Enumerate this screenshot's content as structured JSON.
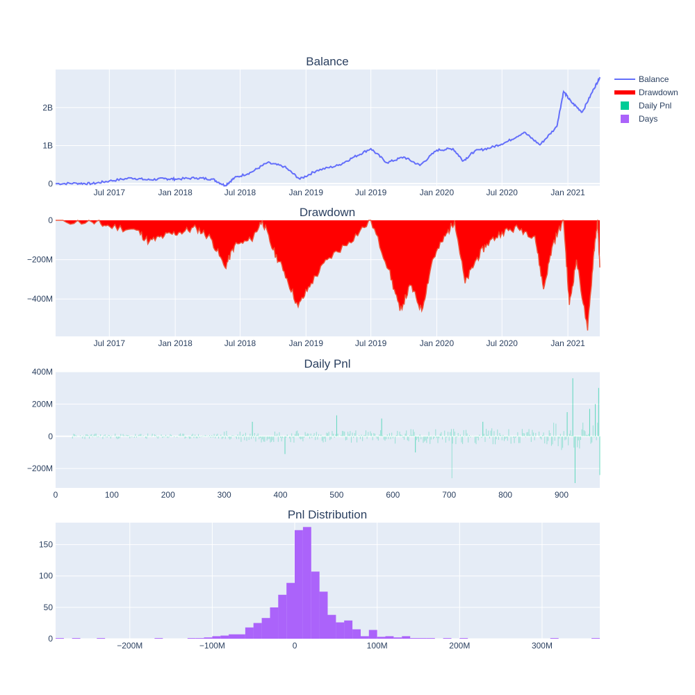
{
  "chart_data": [
    {
      "type": "line",
      "title": "Balance",
      "series_name": "Balance",
      "x_ticks": [
        "Jul 2017",
        "Jan 2018",
        "Jul 2018",
        "Jan 2019",
        "Jul 2019",
        "Jan 2020",
        "Jul 2020",
        "Jan 2021"
      ],
      "y_ticks": [
        "0",
        "1B",
        "2B"
      ],
      "y_tick_values": [
        0,
        1,
        2
      ],
      "y_unit": "billions",
      "ylim": [
        -0.05,
        3.0
      ],
      "x_start": "2017-02-01",
      "x_end": "2021-03-31",
      "x_tick_dates": [
        "2017-07-01",
        "2018-01-01",
        "2018-07-01",
        "2019-01-01",
        "2019-07-01",
        "2020-01-01",
        "2020-07-01",
        "2021-01-01"
      ],
      "points": [
        [
          "2017-02-01",
          0.0
        ],
        [
          "2017-04-01",
          0.01
        ],
        [
          "2017-05-15",
          0.0
        ],
        [
          "2017-07-01",
          0.07
        ],
        [
          "2017-09-01",
          0.15
        ],
        [
          "2017-10-15",
          0.1
        ],
        [
          "2017-12-01",
          0.13
        ],
        [
          "2018-01-01",
          0.12
        ],
        [
          "2018-03-01",
          0.15
        ],
        [
          "2018-04-15",
          0.12
        ],
        [
          "2018-05-20",
          -0.05
        ],
        [
          "2018-06-15",
          0.15
        ],
        [
          "2018-08-01",
          0.3
        ],
        [
          "2018-09-15",
          0.55
        ],
        [
          "2018-11-01",
          0.45
        ],
        [
          "2018-12-15",
          0.12
        ],
        [
          "2019-02-01",
          0.35
        ],
        [
          "2019-04-01",
          0.48
        ],
        [
          "2019-05-15",
          0.7
        ],
        [
          "2019-07-01",
          0.92
        ],
        [
          "2019-08-15",
          0.55
        ],
        [
          "2019-10-01",
          0.7
        ],
        [
          "2019-11-15",
          0.48
        ],
        [
          "2020-01-01",
          0.88
        ],
        [
          "2020-02-15",
          0.92
        ],
        [
          "2020-03-15",
          0.6
        ],
        [
          "2020-04-15",
          0.85
        ],
        [
          "2020-06-01",
          0.95
        ],
        [
          "2020-07-15",
          1.1
        ],
        [
          "2020-09-01",
          1.35
        ],
        [
          "2020-10-15",
          1.02
        ],
        [
          "2020-12-01",
          1.5
        ],
        [
          "2020-12-20",
          2.42
        ],
        [
          "2021-01-10",
          2.15
        ],
        [
          "2021-02-10",
          1.88
        ],
        [
          "2021-03-15",
          2.5
        ],
        [
          "2021-03-31",
          2.8
        ]
      ]
    },
    {
      "type": "area",
      "title": "Drawdown",
      "series_name": "Drawdown",
      "x_ticks": [
        "Jul 2017",
        "Jan 2018",
        "Jul 2018",
        "Jan 2019",
        "Jul 2019",
        "Jan 2020",
        "Jul 2020",
        "Jan 2021"
      ],
      "y_ticks": [
        "0",
        "−200M",
        "−400M"
      ],
      "y_tick_values": [
        0,
        -200,
        -400
      ],
      "y_unit": "millions",
      "ylim": [
        -590,
        0
      ],
      "points": [
        [
          "2017-02-01",
          0
        ],
        [
          "2017-05-15",
          -10
        ],
        [
          "2017-07-01",
          -30
        ],
        [
          "2017-09-15",
          -50
        ],
        [
          "2017-10-20",
          -110
        ],
        [
          "2017-12-01",
          -80
        ],
        [
          "2018-01-15",
          -60
        ],
        [
          "2018-03-01",
          -40
        ],
        [
          "2018-04-10",
          -90
        ],
        [
          "2018-05-20",
          -240
        ],
        [
          "2018-06-15",
          -130
        ],
        [
          "2018-08-01",
          -100
        ],
        [
          "2018-09-01",
          0
        ],
        [
          "2018-10-01",
          -150
        ],
        [
          "2018-11-01",
          -260
        ],
        [
          "2018-12-10",
          -440
        ],
        [
          "2019-01-15",
          -320
        ],
        [
          "2019-03-01",
          -200
        ],
        [
          "2019-05-01",
          -110
        ],
        [
          "2019-07-01",
          0
        ],
        [
          "2019-08-20",
          -250
        ],
        [
          "2019-09-20",
          -460
        ],
        [
          "2019-10-20",
          -330
        ],
        [
          "2019-11-20",
          -460
        ],
        [
          "2019-12-20",
          -200
        ],
        [
          "2020-01-25",
          -80
        ],
        [
          "2020-02-20",
          0
        ],
        [
          "2020-03-20",
          -320
        ],
        [
          "2020-04-20",
          -200
        ],
        [
          "2020-05-20",
          -120
        ],
        [
          "2020-07-01",
          -60
        ],
        [
          "2020-08-15",
          -40
        ],
        [
          "2020-10-01",
          -80
        ],
        [
          "2020-10-25",
          -350
        ],
        [
          "2020-11-20",
          -120
        ],
        [
          "2020-12-20",
          0
        ],
        [
          "2021-01-05",
          -430
        ],
        [
          "2021-01-25",
          -200
        ],
        [
          "2021-02-25",
          -560
        ],
        [
          "2021-03-15",
          -150
        ],
        [
          "2021-03-25",
          0
        ],
        [
          "2021-03-31",
          -240
        ]
      ]
    },
    {
      "type": "bar",
      "title": "Daily Pnl",
      "series_name": "Daily Pnl",
      "x_ticks": [
        "0",
        "100",
        "200",
        "300",
        "400",
        "500",
        "600",
        "700",
        "800",
        "900"
      ],
      "xlim": [
        0,
        968
      ],
      "y_ticks": [
        "400M",
        "200M",
        "0",
        "−200M"
      ],
      "y_tick_values": [
        400,
        200,
        0,
        -200
      ],
      "y_unit": "millions",
      "ylim": [
        -320,
        400
      ],
      "values_summary": "daily bars from day 30 to 968, small amplitude early, extremes near days 700 (-260M), 920 (+360M, -290M), 968 (+300M, -240M)",
      "spikes": [
        [
          350,
          90
        ],
        [
          408,
          -110
        ],
        [
          500,
          130
        ],
        [
          580,
          110
        ],
        [
          640,
          -100
        ],
        [
          705,
          -260
        ],
        [
          760,
          90
        ],
        [
          910,
          150
        ],
        [
          920,
          360
        ],
        [
          924,
          -290
        ],
        [
          950,
          170
        ],
        [
          960,
          200
        ],
        [
          966,
          300
        ],
        [
          968,
          -240
        ]
      ]
    },
    {
      "type": "bar",
      "title": "Pnl Distribution",
      "series_name": "Days",
      "x_ticks": [
        "−200M",
        "−100M",
        "0",
        "100M",
        "200M",
        "300M"
      ],
      "x_tick_values": [
        -200,
        -100,
        0,
        100,
        200,
        300
      ],
      "x_unit": "millions",
      "xlim": [
        -290,
        370
      ],
      "y_ticks": [
        "150",
        "100",
        "50",
        "0"
      ],
      "y_tick_values": [
        150,
        100,
        50,
        0
      ],
      "ylim": [
        0,
        185
      ],
      "bin_width": 10,
      "bins": [
        [
          -130,
          1
        ],
        [
          -120,
          1
        ],
        [
          -110,
          2
        ],
        [
          -100,
          4
        ],
        [
          -90,
          5
        ],
        [
          -80,
          7
        ],
        [
          -70,
          7
        ],
        [
          -60,
          18
        ],
        [
          -50,
          25
        ],
        [
          -40,
          33
        ],
        [
          -30,
          50
        ],
        [
          -20,
          70
        ],
        [
          -10,
          89
        ],
        [
          0,
          173
        ],
        [
          10,
          178
        ],
        [
          20,
          107
        ],
        [
          30,
          75
        ],
        [
          40,
          38
        ],
        [
          50,
          26
        ],
        [
          60,
          29
        ],
        [
          70,
          15
        ],
        [
          80,
          4
        ],
        [
          90,
          14
        ],
        [
          100,
          3
        ],
        [
          110,
          4
        ],
        [
          120,
          2
        ],
        [
          130,
          4
        ],
        [
          140,
          1
        ],
        [
          150,
          1
        ],
        [
          160,
          1
        ],
        [
          -290,
          1
        ],
        [
          -270,
          1
        ],
        [
          -240,
          1
        ],
        [
          -170,
          1
        ],
        [
          180,
          1
        ],
        [
          200,
          1
        ],
        [
          310,
          1
        ],
        [
          360,
          1
        ]
      ]
    }
  ],
  "legend": {
    "items": [
      {
        "label": "Balance",
        "color": "#636efa",
        "kind": "line"
      },
      {
        "label": "Drawdown",
        "color": "#ff0000",
        "kind": "thick-line"
      },
      {
        "label": "Daily Pnl",
        "color": "#00cc96",
        "kind": "square"
      },
      {
        "label": "Days",
        "color": "#ab63fa",
        "kind": "square"
      }
    ]
  },
  "colors": {
    "plot_bg": "#e5ecf6",
    "grid": "#ffffff",
    "balance": "#636efa",
    "drawdown_fill": "#ff0000",
    "drawdown_line": "#ef553b",
    "daily_pnl": "#00cc96",
    "days": "#ab63fa",
    "text": "#2a3f5f"
  }
}
